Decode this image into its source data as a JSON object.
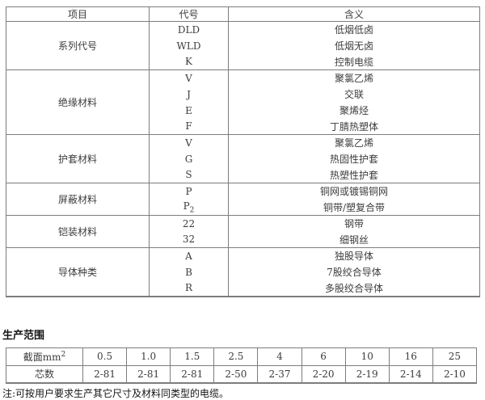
{
  "page": {
    "bg": "#ffffff",
    "border_color": "#7d7d7d",
    "text_color": "#3c3c3c",
    "heading_color": "#141414"
  },
  "code_table": {
    "headers": {
      "item": "项目",
      "code": "代号",
      "meaning": "含义"
    },
    "groups": [
      {
        "item": "系列代号",
        "rows": [
          {
            "code": "DLD",
            "meaning": "低烟低卤"
          },
          {
            "code": "WLD",
            "meaning": "低烟无卤"
          },
          {
            "code": "K",
            "meaning": "控制电缆"
          }
        ]
      },
      {
        "item": "绝缘材料",
        "rows": [
          {
            "code": "V",
            "meaning": "聚氯乙烯"
          },
          {
            "code": "J",
            "meaning": "交联"
          },
          {
            "code": "E",
            "meaning": "聚烯烃"
          },
          {
            "code": "F",
            "meaning": "丁腈热塑体"
          }
        ]
      },
      {
        "item": "护套材料",
        "rows": [
          {
            "code": "V",
            "meaning": "聚氯乙烯"
          },
          {
            "code": "G",
            "meaning": "热固性护套"
          },
          {
            "code": "S",
            "meaning": "热塑性护套"
          }
        ]
      },
      {
        "item": "屏蔽材料",
        "rows": [
          {
            "code": "P",
            "meaning": "铜网或镀锡铜网"
          },
          {
            "code": "P",
            "code_sub": "2",
            "meaning": "铜带/塑复合带"
          }
        ]
      },
      {
        "item": "铠装材料",
        "rows": [
          {
            "code": "22",
            "meaning": "钢带"
          },
          {
            "code": "32",
            "meaning": "细钢丝"
          }
        ]
      },
      {
        "item": "导体种类",
        "rows": [
          {
            "code": "A",
            "meaning": "独股导体"
          },
          {
            "code": "B",
            "meaning": "7股绞合导体"
          },
          {
            "code": "R",
            "meaning": "多股绞合导体"
          }
        ]
      }
    ]
  },
  "production": {
    "heading": "生产范围",
    "cross_section_label": "截面mm",
    "cross_section_sup": "2",
    "cross_sections": [
      "0.5",
      "1.0",
      "1.5",
      "2.5",
      "4",
      "6",
      "10",
      "16",
      "25"
    ],
    "cores_label": "芯数",
    "cores": [
      "2-81",
      "2-81",
      "2-81",
      "2-50",
      "2-37",
      "2-20",
      "2-19",
      "2-14",
      "2-10"
    ],
    "note": "注:可按用户要求生产其它尺寸及材料同类型的电缆。"
  }
}
